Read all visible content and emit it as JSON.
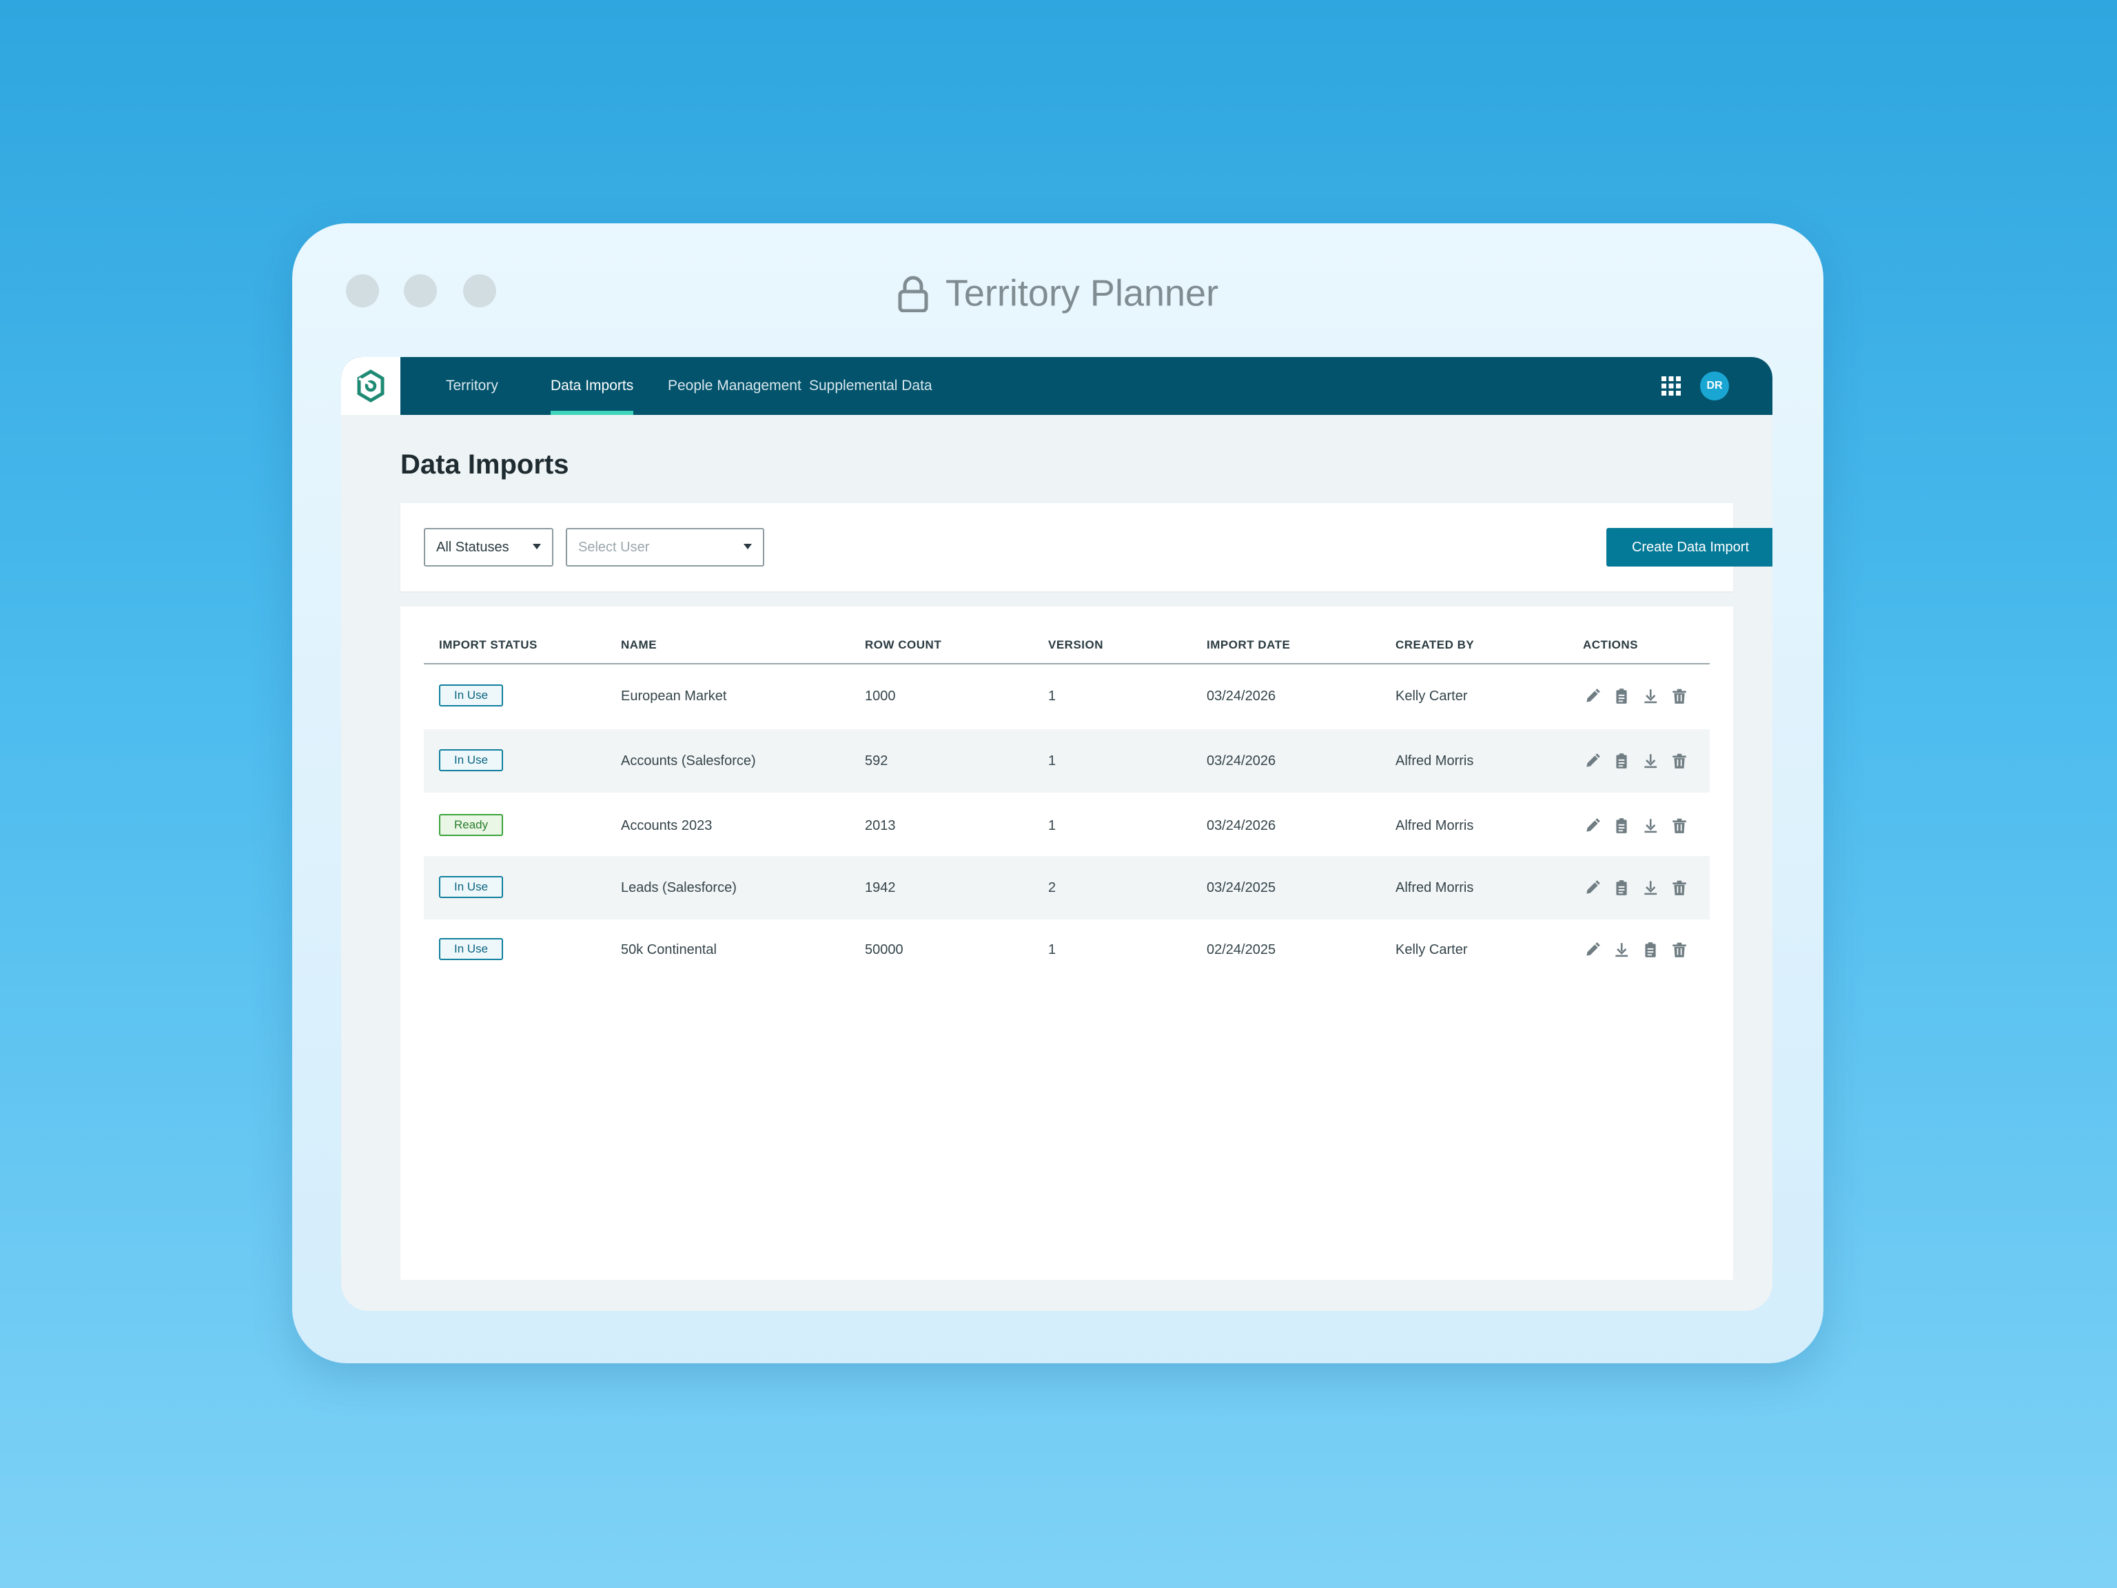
{
  "window": {
    "title": "Territory Planner"
  },
  "nav": {
    "items": [
      {
        "label": "Territory",
        "active": false
      },
      {
        "label": "Data Imports",
        "active": true
      },
      {
        "label": "People Management",
        "active": false
      },
      {
        "label": "Supplemental Data",
        "active": false
      }
    ],
    "avatar_initials": "DR",
    "apps_icon": "grid-icon"
  },
  "page": {
    "title": "Data Imports"
  },
  "filters": {
    "status_select": "All Statuses",
    "user_select_placeholder": "Select User",
    "create_button": "Create Data Import"
  },
  "table": {
    "columns": [
      "IMPORT STATUS",
      "NAME",
      "ROW COUNT",
      "VERSION",
      "IMPORT DATE",
      "CREATED BY",
      "ACTIONS"
    ],
    "rows": [
      {
        "status": "In Use",
        "name": "European Market",
        "row_count": "1000",
        "version": "1",
        "import_date": "03/24/2026",
        "created_by": "Kelly Carter",
        "actions": [
          "edit",
          "clipboard",
          "download",
          "delete"
        ]
      },
      {
        "status": "In Use",
        "name": "Accounts (Salesforce)",
        "row_count": "592",
        "version": "1",
        "import_date": "03/24/2026",
        "created_by": "Alfred Morris",
        "actions": [
          "edit",
          "clipboard",
          "download",
          "delete"
        ]
      },
      {
        "status": "Ready",
        "name": "Accounts 2023",
        "row_count": "2013",
        "version": "1",
        "import_date": "03/24/2026",
        "created_by": "Alfred Morris",
        "actions": [
          "edit",
          "clipboard",
          "download",
          "delete"
        ]
      },
      {
        "status": "In Use",
        "name": "Leads (Salesforce)",
        "row_count": "1942",
        "version": "2",
        "import_date": "03/24/2025",
        "created_by": "Alfred Morris",
        "actions": [
          "edit",
          "clipboard",
          "download",
          "delete"
        ]
      },
      {
        "status": "In Use",
        "name": "50k Continental",
        "row_count": "50000",
        "version": "1",
        "import_date": "02/24/2025",
        "created_by": "Kelly Carter",
        "actions": [
          "edit",
          "download",
          "clipboard",
          "delete"
        ]
      }
    ]
  },
  "colors": {
    "nav_bg": "#03536c",
    "accent": "#057a98",
    "tab_indicator": "#3ed4b9",
    "ready_green": "#3aa33a"
  }
}
